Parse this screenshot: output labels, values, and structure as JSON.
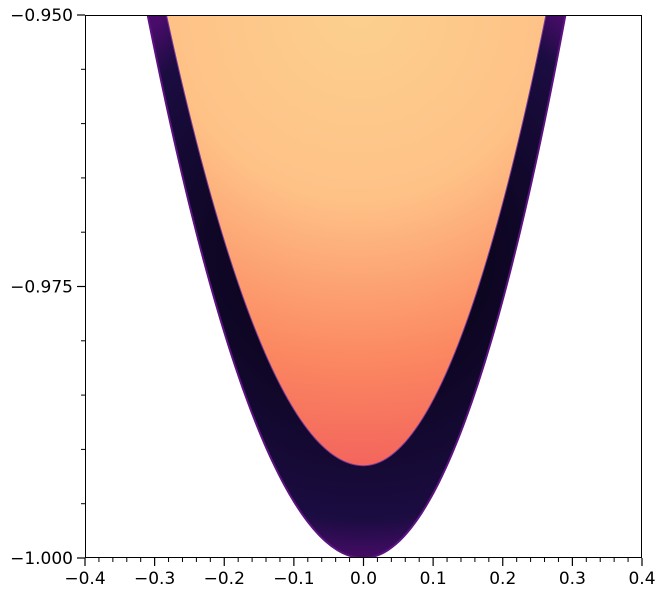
{
  "chart_data": {
    "type": "heatmap",
    "title": "",
    "xlabel": "",
    "ylabel": "",
    "xlim": [
      -0.4,
      0.4
    ],
    "ylim": [
      -1.0,
      -0.95
    ],
    "x_ticks": [
      -0.4,
      -0.3,
      -0.2,
      -0.1,
      0.0,
      0.1,
      0.2,
      0.3,
      0.4
    ],
    "x_tick_labels": [
      "−0.4",
      "−0.3",
      "−0.2",
      "−0.1",
      "0.0",
      "0.1",
      "0.2",
      "0.3",
      "0.4"
    ],
    "x_minor_step": 0.02,
    "y_ticks": [
      -1.0,
      -0.975,
      -0.95
    ],
    "y_tick_labels": [
      "−1.000",
      "−0.975",
      "−0.950"
    ],
    "y_minor_step": 0.005,
    "grid": false,
    "colormap": "magma",
    "regions": [
      {
        "name": "outer-band",
        "shape": "parabola",
        "vertex": [
          0.0,
          -1.0
        ],
        "top_left_x": -0.31,
        "top_right_x": 0.29,
        "top_y": -0.95,
        "colors": [
          "#000004",
          "#1b0c41",
          "#4a0c6b"
        ]
      },
      {
        "name": "inner-region",
        "shape": "parabola",
        "vertex": [
          0.0,
          -0.9915
        ],
        "top_left_x": -0.283,
        "top_right_x": 0.262,
        "top_y": -0.95,
        "colors": [
          "#f2605c",
          "#fb8761",
          "#fec287",
          "#fcd08f"
        ]
      }
    ]
  }
}
